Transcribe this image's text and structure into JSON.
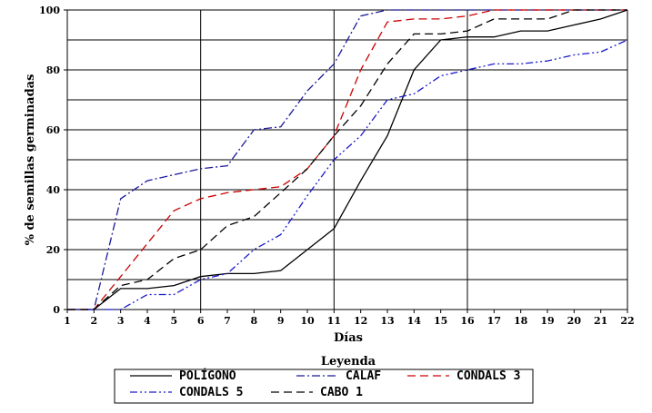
{
  "chart_data": {
    "type": "line",
    "xlabel": "Días",
    "ylabel": "% de semillas germinadas",
    "x": [
      1,
      2,
      3,
      4,
      5,
      6,
      7,
      8,
      9,
      10,
      11,
      12,
      13,
      14,
      15,
      16,
      17,
      18,
      19,
      20,
      21,
      22
    ],
    "xlim": [
      1,
      22
    ],
    "ylim": [
      0,
      100
    ],
    "yticks": [
      0,
      20,
      40,
      60,
      80,
      100
    ],
    "grid": "horizontal every 10, vertical at days 6, 11, 16, 22",
    "legend": {
      "title": "Leyenda",
      "placement": "bottom-center"
    },
    "series": [
      {
        "name": "POLÍGONO",
        "color": "#000000",
        "dash": "solid",
        "values": [
          0,
          0,
          7,
          7,
          8,
          11,
          12,
          12,
          13,
          20,
          27,
          43,
          58,
          80,
          90,
          91,
          91,
          93,
          93,
          95,
          97,
          100
        ]
      },
      {
        "name": "CALAF",
        "color": "#1a1a99",
        "dash": "dash-dot",
        "values": [
          0,
          0,
          37,
          43,
          45,
          47,
          48,
          60,
          61,
          73,
          82,
          98,
          100,
          100,
          100,
          100,
          100,
          100,
          100,
          100,
          100,
          100
        ]
      },
      {
        "name": "CONDALS 3",
        "color": "#cc0000",
        "dash": "dashed",
        "values": [
          0,
          0,
          11,
          22,
          33,
          37,
          39,
          40,
          41,
          47,
          58,
          80,
          96,
          97,
          97,
          98,
          100,
          100,
          100,
          100,
          100,
          100
        ]
      },
      {
        "name": "CONDALS 5",
        "color": "#1a1acc",
        "dash": "dash-dot-dot",
        "values": [
          0,
          0,
          0,
          5,
          5,
          10,
          12,
          20,
          25,
          38,
          50,
          58,
          70,
          72,
          78,
          80,
          82,
          82,
          83,
          85,
          86,
          90
        ]
      },
      {
        "name": "CABO 1",
        "color": "#000000",
        "dash": "dashed",
        "values": [
          0,
          0,
          8,
          10,
          17,
          20,
          28,
          31,
          39,
          47,
          58,
          68,
          82,
          92,
          92,
          93,
          97,
          97,
          97,
          100,
          100,
          100
        ]
      }
    ]
  }
}
